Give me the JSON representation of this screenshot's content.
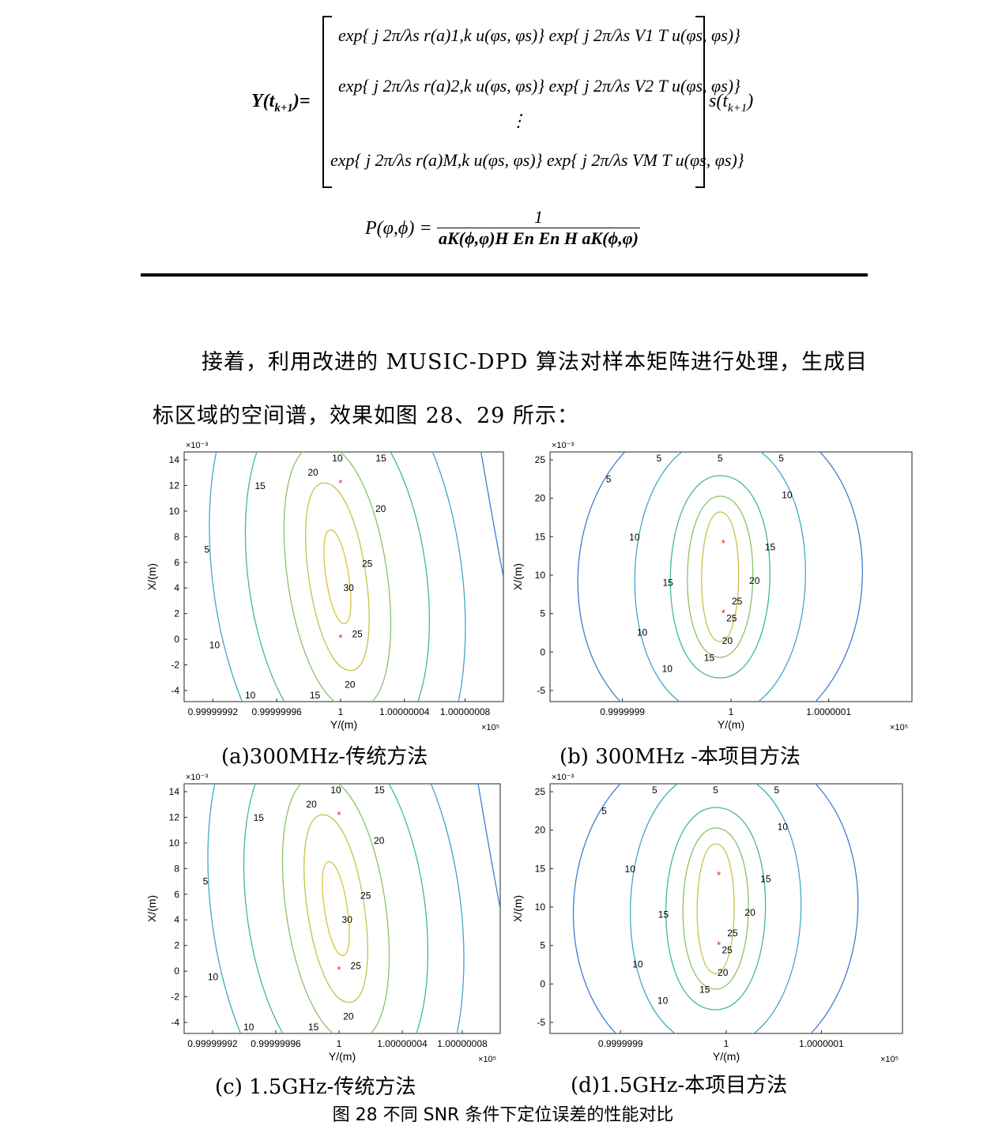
{
  "equations": {
    "y_lhs": "Y(t",
    "y_sub": "k+1",
    "y_close": ")=",
    "rows": [
      "exp{ j 2π/λs r(a)1,k u(φs, φs)} exp{ j 2π/λs V1 T u(φs, φs)}",
      "exp{ j 2π/λs r(a)2,k u(φs, φs)} exp{ j 2π/λs V2 T u(φs, φs)}",
      "⋮",
      "exp{ j 2π/λs r(a)M,k u(φs, φs)} exp{ j 2π/λs VM T u(φs, φs)}"
    ],
    "rhs": "s(t",
    "rhs_sub": "k+1",
    "rhs_close": ")",
    "p_lhs": "P(φ,ϕ) =",
    "p_num": "1",
    "p_den": "aK(ϕ,φ)H En En H aK(ϕ,φ)"
  },
  "paragraph": {
    "line1": "接着，利用改进的 MUSIC-DPD 算法对样本矩阵进行处理，生成目",
    "line2": "标区域的空间谱，效果如图 28、29 所示："
  },
  "panels": [
    {
      "id": "a",
      "caption": "(a)300MHz-传统方法",
      "xlabel": "Y/(m)",
      "ylabel": "X/(m)",
      "x_exp": "×10⁵",
      "y_exp": "×10⁻³",
      "x_ticks": [
        "0.99999992",
        "0.99999996",
        "1",
        "1.00000004",
        "1.00000008"
      ],
      "y_ticks": [
        "14",
        "12",
        "10",
        "8",
        "6",
        "4",
        "2",
        "0",
        "-2",
        "-4"
      ],
      "contour_labels": [
        "10",
        "15",
        "20",
        "25",
        "30",
        "25",
        "20",
        "15",
        "10",
        "10",
        "5",
        "15",
        "20"
      ]
    },
    {
      "id": "b",
      "caption": "(b) 300MHz -本项目方法",
      "xlabel": "Y/(m)",
      "ylabel": "X/(m)",
      "x_exp": "×10⁵",
      "y_exp": "×10⁻³",
      "x_ticks": [
        "0.9999999",
        "1",
        "1.0000001"
      ],
      "y_ticks": [
        "25",
        "20",
        "15",
        "10",
        "5",
        "0",
        "-5"
      ],
      "contour_labels": [
        "5",
        "5",
        "10",
        "15",
        "20",
        "25",
        "25",
        "20",
        "15",
        "10",
        "10",
        "15",
        "10",
        "5",
        "5"
      ]
    },
    {
      "id": "c",
      "caption": "(c) 1.5GHz-传统方法",
      "xlabel": "Y/(m)",
      "ylabel": "X/(m)",
      "x_exp": "×10⁵",
      "y_exp": "×10⁻³",
      "x_ticks": [
        "0.99999992",
        "0.99999996",
        "1",
        "1.00000004",
        "1.00000008"
      ],
      "y_ticks": [
        "14",
        "12",
        "10",
        "8",
        "6",
        "4",
        "2",
        "0",
        "-2",
        "-4"
      ],
      "contour_labels": [
        "10",
        "15",
        "20",
        "25",
        "30",
        "25",
        "20",
        "15",
        "10",
        "10",
        "5",
        "15",
        "20"
      ]
    },
    {
      "id": "d",
      "caption": "(d)1.5GHz-本项目方法",
      "xlabel": "Y/(m)",
      "ylabel": "X/(m)",
      "x_exp": "×10⁵",
      "y_exp": "×10⁻³",
      "x_ticks": [
        "0.9999999",
        "1",
        "1.0000001"
      ],
      "y_ticks": [
        "25",
        "20",
        "15",
        "10",
        "5",
        "0",
        "-5"
      ],
      "contour_labels": [
        "5",
        "5",
        "10",
        "15",
        "20",
        "25",
        "25",
        "20",
        "15",
        "10",
        "10",
        "15",
        "10",
        "5",
        "5"
      ]
    }
  ],
  "figure_caption": "图 28 不同 SNR 条件下定位误差的性能对比",
  "colors": {
    "c5": "#3f7fcf",
    "c10": "#42a6c8",
    "c15": "#40b8a0",
    "c20": "#8cc26a",
    "c25": "#c8c04a",
    "c30": "#d8c53c",
    "marker": "#e02020"
  }
}
